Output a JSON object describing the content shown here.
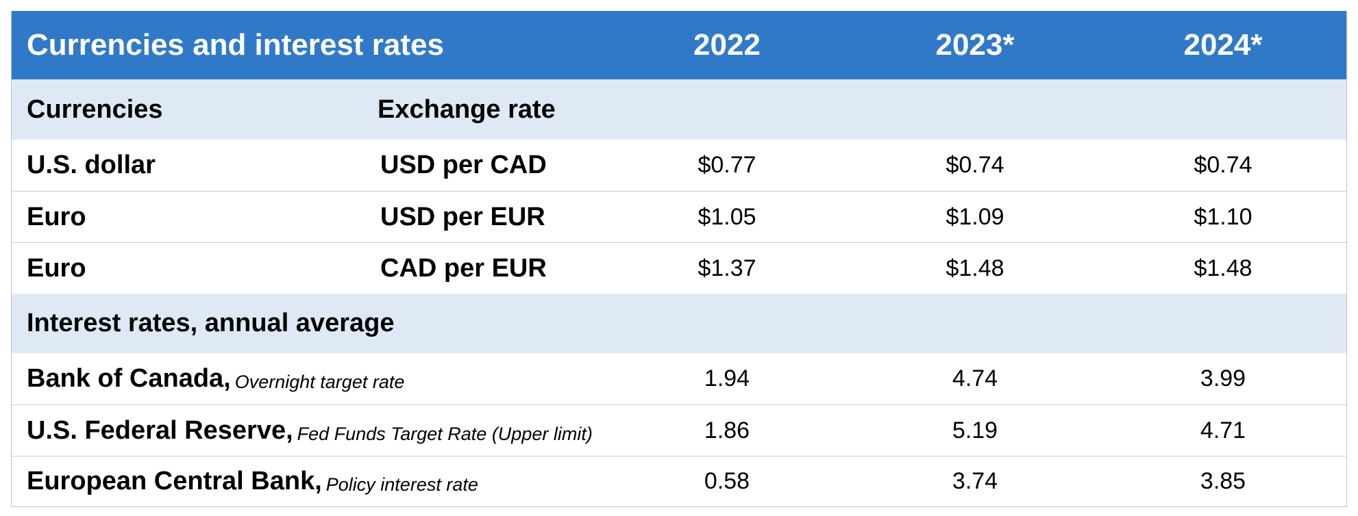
{
  "header": {
    "title": "Currencies and interest rates",
    "years": [
      "2022",
      "2023*",
      "2024*"
    ]
  },
  "currencies_section": {
    "label": "Currencies",
    "sublabel": "Exchange rate",
    "rows": [
      {
        "name": "U.S. dollar",
        "unit": "USD per CAD",
        "values": [
          "$0.77",
          "$0.74",
          "$0.74"
        ]
      },
      {
        "name": "Euro",
        "unit": "USD per EUR",
        "values": [
          "$1.05",
          "$1.09",
          "$1.10"
        ]
      },
      {
        "name": "Euro",
        "unit": "CAD per EUR",
        "values": [
          "$1.37",
          "$1.48",
          "$1.48"
        ]
      }
    ]
  },
  "interest_section": {
    "label": "Interest rates, annual average",
    "rows": [
      {
        "name": "Bank of Canada,",
        "note": "Overnight target rate",
        "values": [
          "1.94",
          "4.74",
          "3.99"
        ]
      },
      {
        "name": "U.S. Federal Reserve,",
        "note": "Fed Funds Target Rate (Upper limit)",
        "values": [
          "1.86",
          "5.19",
          "4.71"
        ]
      },
      {
        "name": "European Central Bank,",
        "note": "Policy interest rate",
        "values": [
          "0.58",
          "3.74",
          "3.85"
        ]
      }
    ]
  },
  "colors": {
    "header_bg": "#3079c8",
    "section_bg": "#dfe9f5",
    "row_border": "#d9cbd9"
  }
}
